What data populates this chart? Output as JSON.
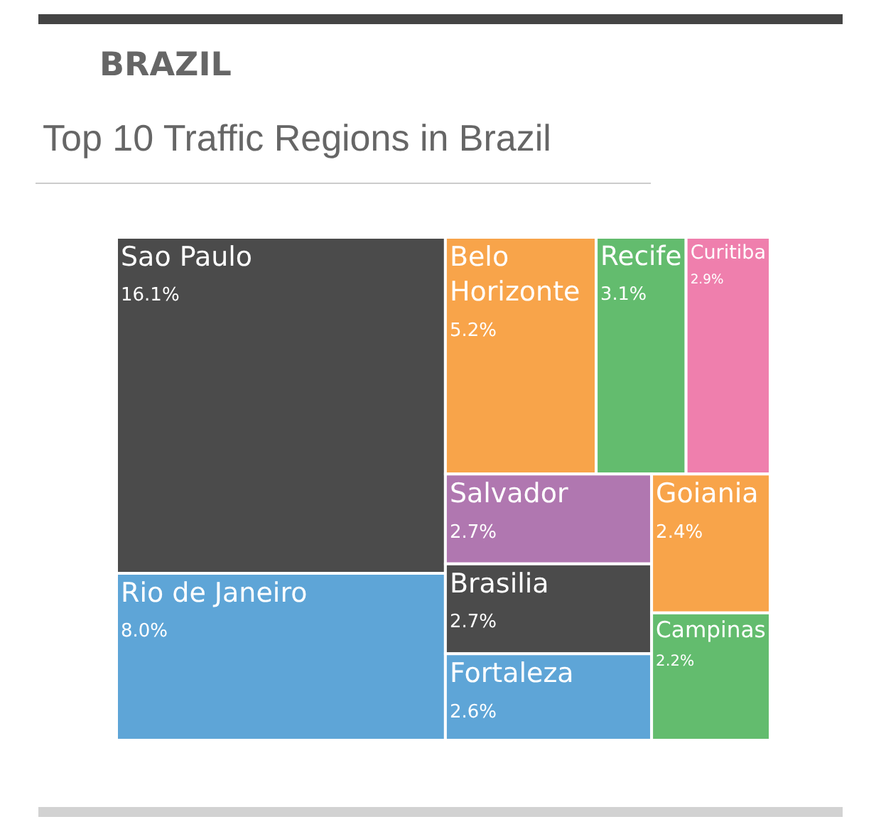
{
  "chart_data": {
    "type": "other",
    "title": "BRAZIL",
    "subtitle": "Top 10 Traffic Regions in Brazil",
    "categories": [
      "Sao Paulo",
      "Rio de Janeiro",
      "Belo Horizonte",
      "Recife",
      "Curitiba",
      "Salvador",
      "Brasilia",
      "Fortaleza",
      "Goiania",
      "Campinas"
    ],
    "values": [
      16.1,
      8.0,
      5.2,
      3.1,
      2.9,
      2.7,
      2.7,
      2.6,
      2.4,
      2.2
    ],
    "value_labels": [
      "16.1%",
      "8.0%",
      "5.2%",
      "3.1%",
      "2.9%",
      "2.7%",
      "2.7%",
      "2.6%",
      "2.4%",
      "2.2%"
    ],
    "colors": [
      "#4b4b4b",
      "#5ea5d7",
      "#f8a44a",
      "#63bc6e",
      "#ef7fad",
      "#b077b0",
      "#4b4b4b",
      "#5ea5d7",
      "#f8a44a",
      "#63bc6e"
    ]
  }
}
